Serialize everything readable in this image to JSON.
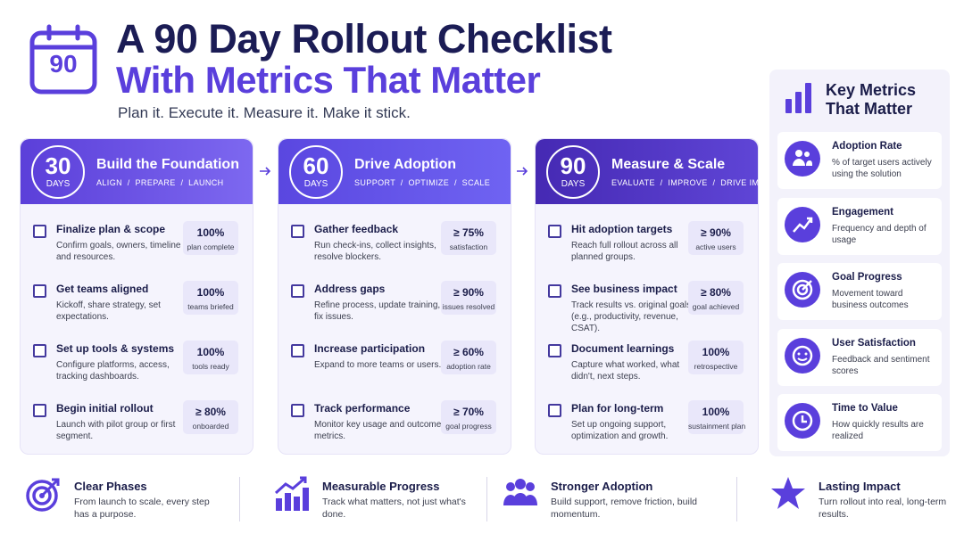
{
  "header": {
    "icon_label": "90",
    "title_line1": "A 90 Day Rollout Checklist",
    "title_line2": "With Metrics That Matter",
    "tagline": "Plan it. Execute it. Measure it. Make it stick."
  },
  "phases": [
    {
      "number": "30",
      "unit": "DAYS",
      "title": "Build the Foundation",
      "steps": "ALIGN  /  PREPARE  /  LAUNCH",
      "tasks": [
        {
          "title": "Finalize plan & scope",
          "description": "Confirm goals, owners, timeline and resources.",
          "metric": "100%",
          "metric_label": "plan complete"
        },
        {
          "title": "Get teams aligned",
          "description": "Kickoff, share strategy, set expectations.",
          "metric": "100%",
          "metric_label": "teams briefed"
        },
        {
          "title": "Set up tools & systems",
          "description": "Configure platforms, access, tracking dashboards.",
          "metric": "100%",
          "metric_label": "tools ready"
        },
        {
          "title": "Begin initial rollout",
          "description": "Launch with pilot group or first segment.",
          "metric": "≥ 80%",
          "metric_label": "onboarded"
        }
      ]
    },
    {
      "number": "60",
      "unit": "DAYS",
      "title": "Drive Adoption",
      "steps": "SUPPORT  /  OPTIMIZE  /  SCALE",
      "tasks": [
        {
          "title": "Gather feedback",
          "description": "Run check-ins, collect insights, resolve blockers.",
          "metric": "≥ 75%",
          "metric_label": "satisfaction"
        },
        {
          "title": "Address gaps",
          "description": "Refine process, update training, fix issues.",
          "metric": "≥ 90%",
          "metric_label": "issues resolved"
        },
        {
          "title": "Increase participation",
          "description": "Expand to more teams or users.",
          "metric": "≥ 60%",
          "metric_label": "adoption rate"
        },
        {
          "title": "Track performance",
          "description": "Monitor key usage and outcome metrics.",
          "metric": "≥ 70%",
          "metric_label": "goal progress"
        }
      ]
    },
    {
      "number": "90",
      "unit": "DAYS",
      "title": "Measure & Scale",
      "steps": "EVALUATE  /  IMPROVE  /  DRIVE IMPACT",
      "tasks": [
        {
          "title": "Hit adoption targets",
          "description": "Reach full rollout across all planned groups.",
          "metric": "≥ 90%",
          "metric_label": "active users"
        },
        {
          "title": "See business impact",
          "description": "Track results vs. original goals (e.g., productivity, revenue, CSAT).",
          "metric": "≥ 80%",
          "metric_label": "goal achieved"
        },
        {
          "title": "Document learnings",
          "description": "Capture what worked, what didn't, next steps.",
          "metric": "100%",
          "metric_label": "retrospective"
        },
        {
          "title": "Plan for long-term",
          "description": "Set up ongoing support, optimization and growth.",
          "metric": "100%",
          "metric_label": "sustainment plan"
        }
      ]
    }
  ],
  "metrics_panel": {
    "title": "Key Metrics That Matter",
    "items": [
      {
        "title": "Adoption Rate",
        "description": "% of target users actively using the solution"
      },
      {
        "title": "Engagement",
        "description": "Frequency and depth of usage"
      },
      {
        "title": "Goal Progress",
        "description": "Movement toward business outcomes"
      },
      {
        "title": "User Satisfaction",
        "description": "Feedback and sentiment scores"
      },
      {
        "title": "Time to Value",
        "description": "How quickly results are realized"
      }
    ]
  },
  "footer": {
    "items": [
      {
        "title": "Clear Phases",
        "description": "From launch to scale, every step has a purpose."
      },
      {
        "title": "Measurable Progress",
        "description": "Track what matters, not just what's done."
      },
      {
        "title": "Stronger Adoption",
        "description": "Build support, remove friction, build momentum."
      },
      {
        "title": "Lasting Impact",
        "description": "Turn rollout into real, long-term results."
      }
    ]
  }
}
